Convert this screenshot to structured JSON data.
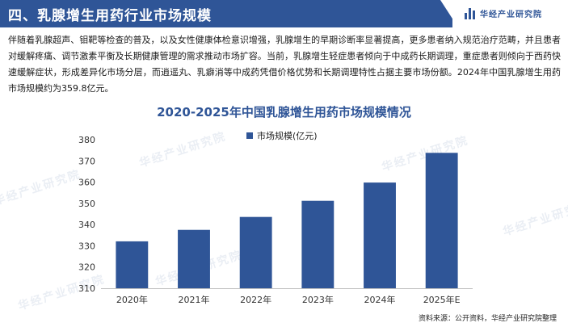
{
  "header": {
    "title": "四、乳腺增生用药行业市场规模",
    "brand": "华经产业研究院",
    "accent_color": "#2f5597"
  },
  "intro_text": "伴随着乳腺超声、钼靶等检查的普及，以及女性健康体检意识增强，乳腺增生的早期诊断率显著提高，更多患者纳入规范治疗范畴，并且患者对缓解疼痛、调节激素平衡及长期健康管理的需求推动市场扩容。当前，乳腺增生轻症患者倾向于中成药长期调理，重症患者则倾向于西药快速缓解症状，形成差异化市场分层，而逍遥丸、乳癖消等中成药凭借价格优势和长期调理特性占据主要市场份额。2024年中国乳腺增生用药市场规模约为359.8亿元。",
  "watermark_text": "华经产业研究院",
  "source": "资料来源：公开资料，华经产业研究院整理",
  "chart_data": {
    "type": "bar",
    "title": "2020-2025年中国乳腺增生用药市场规模情况",
    "categories": [
      "2020年",
      "2021年",
      "2022年",
      "2023年",
      "2024年",
      "2025年E"
    ],
    "series": [
      {
        "name": "市场规模(亿元)",
        "values": [
          332.1,
          337.5,
          343.6,
          351.2,
          359.8,
          373.8
        ],
        "color": "#2f5597"
      }
    ],
    "ylim": [
      310,
      380
    ],
    "yticks": [
      310,
      320,
      330,
      340,
      350,
      360,
      370,
      380
    ],
    "grid": false,
    "legend_position": "top-center"
  }
}
